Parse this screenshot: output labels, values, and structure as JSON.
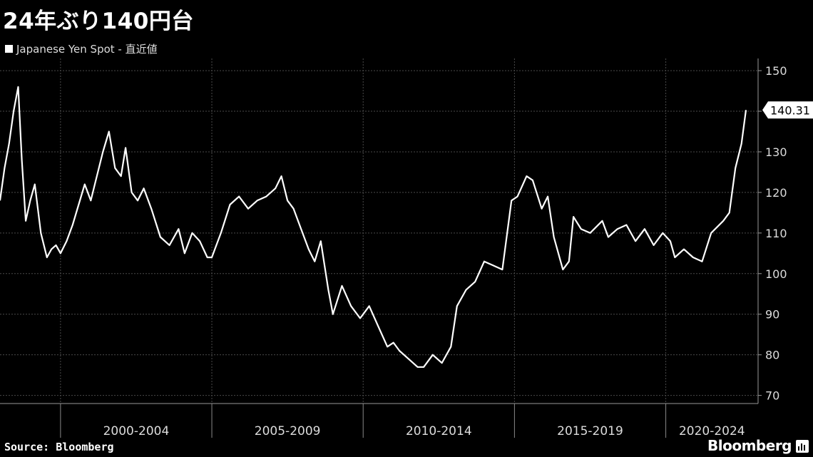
{
  "header": {
    "title": "24年ぶり140円台",
    "legend_label": "Japanese Yen Spot - 直近値"
  },
  "footer": {
    "source": "Source: Bloomberg",
    "brand": "Bloomberg"
  },
  "colors": {
    "background": "#000000",
    "line": "#ffffff",
    "grid": "#555555"
  },
  "chart_data": {
    "type": "line",
    "title": "24年ぶり140円台",
    "series": [
      {
        "name": "Japanese Yen Spot - 直近値",
        "x": [
          1998.0,
          1998.15,
          1998.3,
          1998.45,
          1998.6,
          1998.72,
          1998.85,
          1999.0,
          1999.15,
          1999.35,
          1999.55,
          1999.7,
          1999.85,
          2000.0,
          2000.2,
          2000.4,
          2000.6,
          2000.8,
          2001.0,
          2001.2,
          2001.4,
          2001.6,
          2001.8,
          2002.0,
          2002.15,
          2002.35,
          2002.55,
          2002.75,
          2003.0,
          2003.3,
          2003.6,
          2003.9,
          2004.1,
          2004.35,
          2004.6,
          2004.85,
          2005.0,
          2005.3,
          2005.6,
          2005.9,
          2006.2,
          2006.5,
          2006.8,
          2007.1,
          2007.3,
          2007.5,
          2007.7,
          2007.95,
          2008.2,
          2008.4,
          2008.6,
          2008.85,
          2009.0,
          2009.3,
          2009.6,
          2009.9,
          2010.2,
          2010.5,
          2010.8,
          2011.0,
          2011.2,
          2011.5,
          2011.8,
          2012.0,
          2012.3,
          2012.6,
          2012.9,
          2013.1,
          2013.4,
          2013.7,
          2014.0,
          2014.3,
          2014.6,
          2014.9,
          2015.1,
          2015.4,
          2015.6,
          2015.9,
          2016.1,
          2016.3,
          2016.6,
          2016.8,
          2016.95,
          2017.2,
          2017.5,
          2017.9,
          2018.1,
          2018.4,
          2018.7,
          2019.0,
          2019.3,
          2019.6,
          2019.9,
          2020.15,
          2020.3,
          2020.6,
          2020.9,
          2021.2,
          2021.5,
          2021.9,
          2022.1,
          2022.3,
          2022.5,
          2022.65
        ],
        "y": [
          118,
          126,
          132,
          140,
          146,
          128,
          113,
          118,
          122,
          110,
          104,
          106,
          107,
          105,
          108,
          112,
          117,
          122,
          118,
          124,
          130,
          135,
          126,
          124,
          131,
          120,
          118,
          121,
          116,
          109,
          107,
          111,
          105,
          110,
          108,
          104,
          104,
          110,
          117,
          119,
          116,
          118,
          119,
          121,
          124,
          118,
          116,
          111,
          106,
          103,
          108,
          96,
          90,
          97,
          92,
          89,
          92,
          87,
          82,
          83,
          81,
          79,
          77,
          77,
          80,
          78,
          82,
          92,
          96,
          98,
          103,
          102,
          101,
          118,
          119,
          124,
          123,
          116,
          119,
          109,
          101,
          103,
          114,
          111,
          110,
          113,
          109,
          111,
          112,
          108,
          111,
          107,
          110,
          108,
          104,
          106,
          104,
          103,
          110,
          113,
          115,
          126,
          132,
          140.31
        ]
      }
    ],
    "xlim": [
      1998,
      2023.05
    ],
    "ylim": [
      68,
      153
    ],
    "y_ticks": [
      70,
      80,
      90,
      100,
      110,
      120,
      130,
      140,
      150
    ],
    "x_period_labels": [
      "2000-2004",
      "2005-2009",
      "2010-2014",
      "2015-2019",
      "2020-2024"
    ],
    "x_period_bounds": [
      2000,
      2005,
      2010,
      2015,
      2020,
      2025
    ],
    "last_value_label": "140.31",
    "grid": true,
    "legend_position": "top-left"
  }
}
